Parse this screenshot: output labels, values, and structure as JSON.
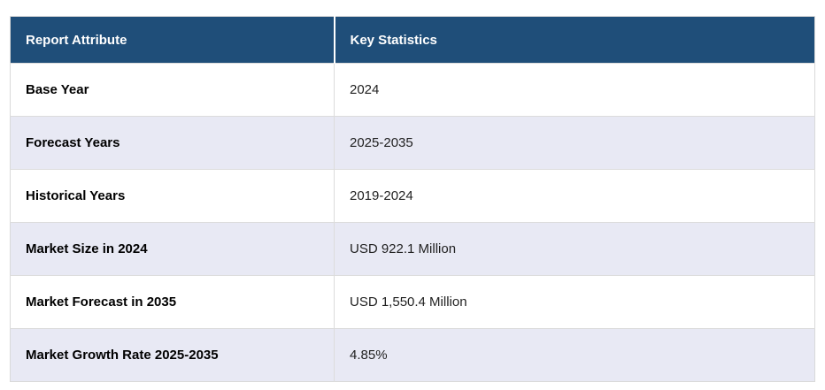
{
  "table": {
    "headers": {
      "attribute": "Report Attribute",
      "value": "Key Statistics"
    },
    "rows": [
      {
        "attribute": "Base Year",
        "value": "2024"
      },
      {
        "attribute": "Forecast Years",
        "value": "2025-2035"
      },
      {
        "attribute": "Historical Years",
        "value": "2019-2024"
      },
      {
        "attribute": "Market Size in 2024",
        "value": "USD 922.1 Million"
      },
      {
        "attribute": "Market Forecast in 2035",
        "value": "USD 1,550.4 Million"
      },
      {
        "attribute": "Market Growth Rate 2025-2035",
        "value": "4.85%"
      }
    ],
    "colors": {
      "header_bg": "#1f4e79",
      "header_text": "#ffffff",
      "row_bg": "#ffffff",
      "row_alt_bg": "#e8e9f4",
      "border": "#dcdcdc"
    }
  }
}
